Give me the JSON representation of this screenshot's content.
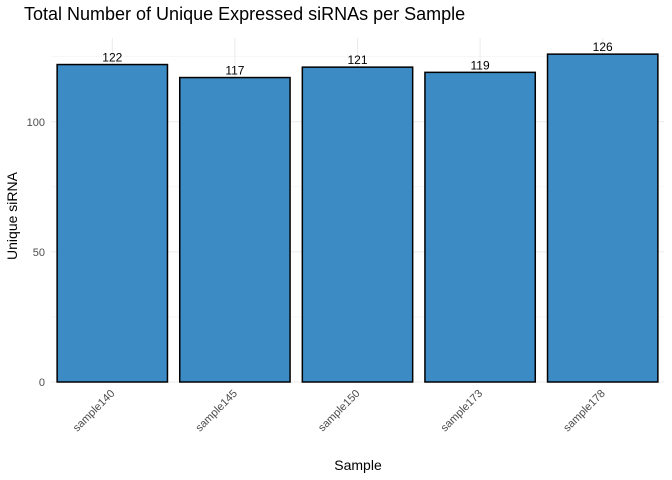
{
  "chart_data": {
    "type": "bar",
    "title": "Total Number of Unique Expressed siRNAs per Sample",
    "xlabel": "Sample",
    "ylabel": "Unique siRNA",
    "categories": [
      "sample140",
      "sample145",
      "sample150",
      "sample173",
      "sample178"
    ],
    "values": [
      122,
      117,
      121,
      119,
      126
    ],
    "data_labels": [
      "122",
      "117",
      "121",
      "119",
      "126"
    ],
    "yticks": [
      0,
      50,
      100
    ],
    "yticks_labels": [
      "0",
      "50",
      "100"
    ],
    "ylim": [
      0,
      132.2
    ],
    "grid": true,
    "bar_color": "#3d8bc4",
    "bar_outline": "#000000"
  }
}
